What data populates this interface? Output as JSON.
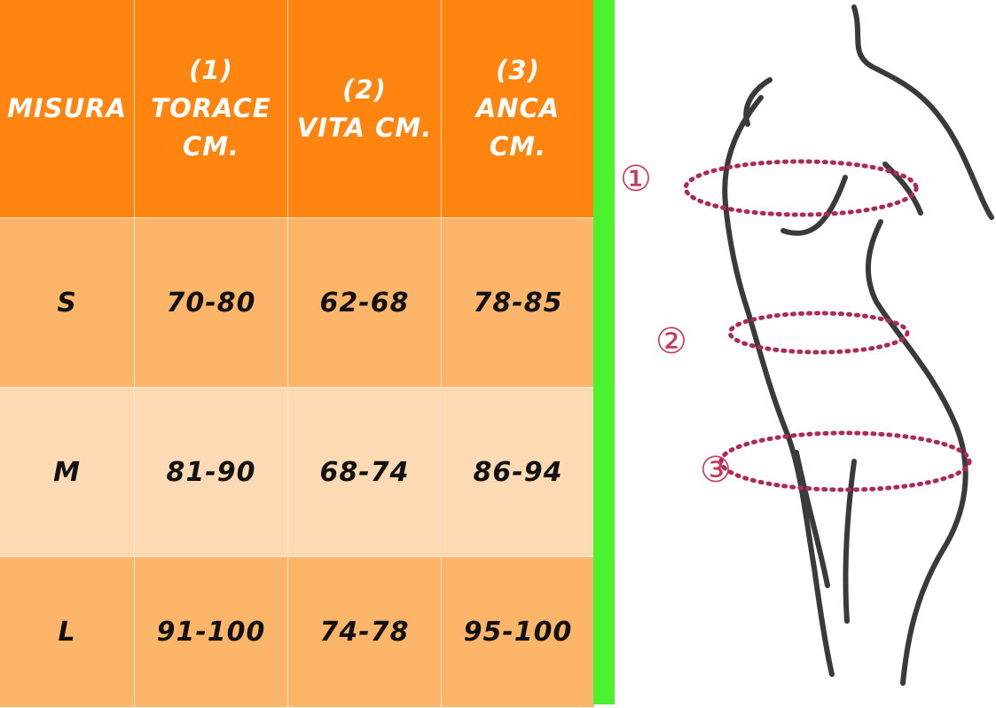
{
  "table": {
    "headers": [
      "MISURA",
      "(1)\nTORACE\nCM.",
      "(2)\nVITA CM.",
      "(3)\nANCA\nCM."
    ],
    "rows": [
      [
        "S",
        "70-80",
        "62-68",
        "78-85"
      ],
      [
        "M",
        "81-90",
        "68-74",
        "86-94"
      ],
      [
        "L",
        "91-100",
        "74-78",
        "95-100"
      ]
    ]
  },
  "figure": {
    "labels": [
      "①",
      "②",
      "③"
    ]
  },
  "colors": {
    "header": "#ff8510",
    "row_light": "#fddab4",
    "row_dark": "#fdb56a",
    "divider": "#4cf22e",
    "measure_line": "#b0285a"
  }
}
